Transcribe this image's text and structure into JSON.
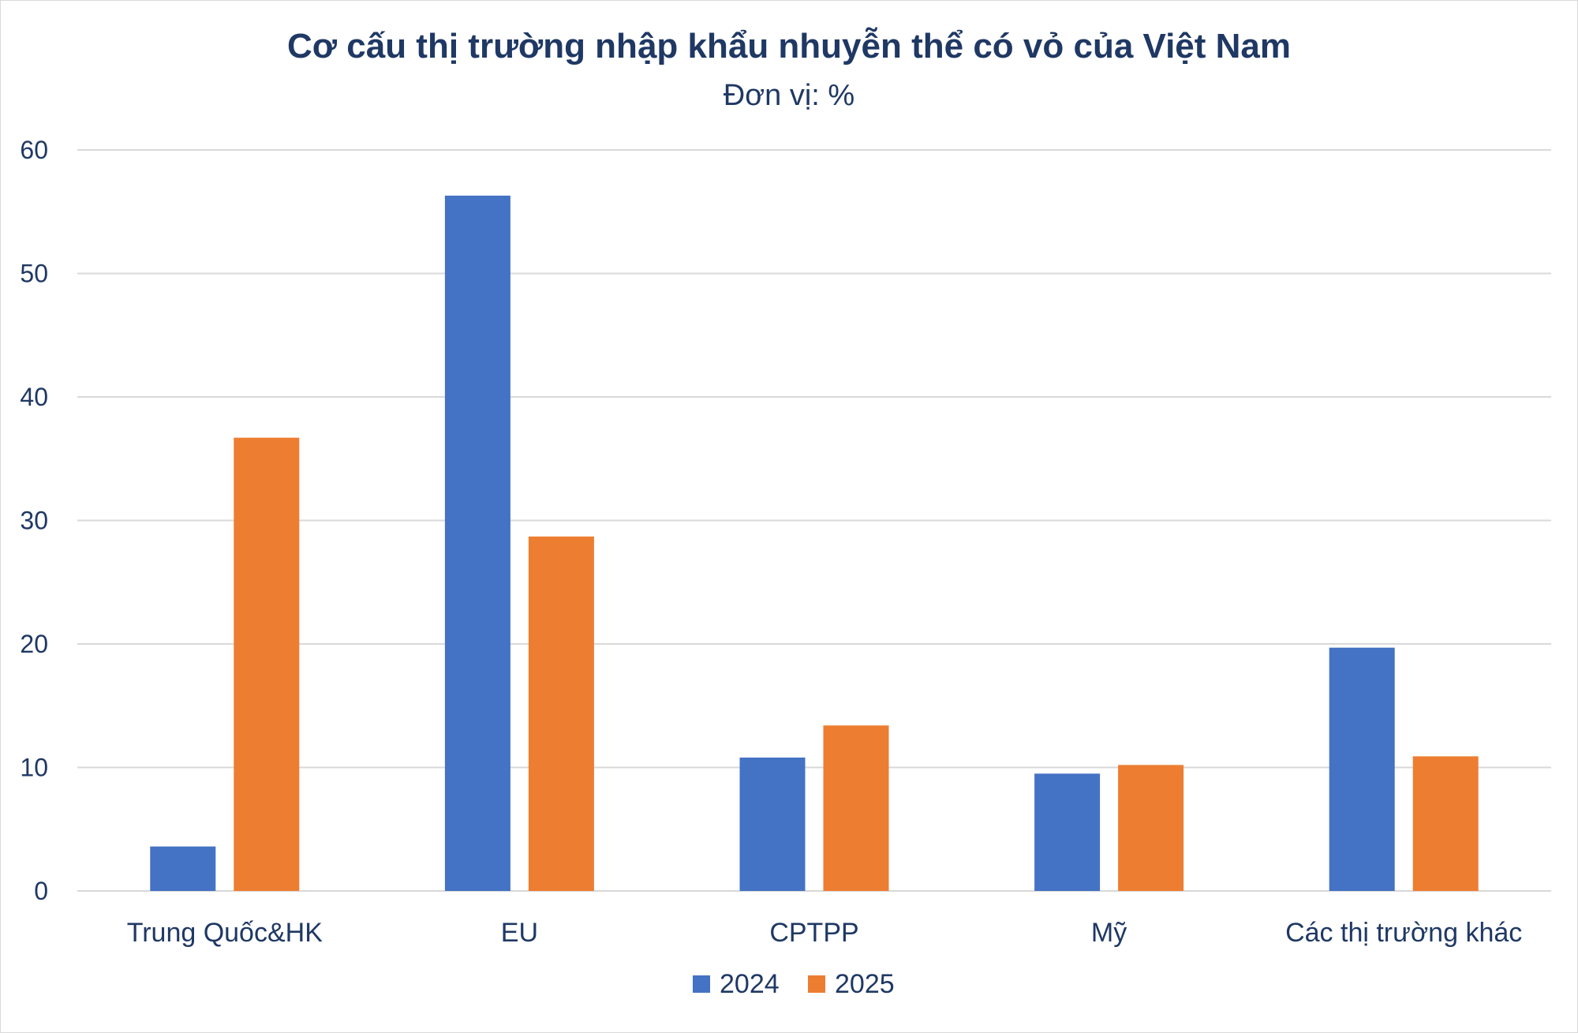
{
  "chart_data": {
    "type": "bar",
    "title": "Cơ cấu thị trường nhập khẩu nhuyễn thể có vỏ của Việt Nam",
    "subtitle": "Đơn vị: %",
    "categories": [
      "Trung Quốc&HK",
      "EU",
      "CPTPP",
      "Mỹ",
      "Các thị trường khác"
    ],
    "series": [
      {
        "name": "2024",
        "color": "#4472c4",
        "values": [
          3.6,
          56.3,
          10.8,
          9.5,
          19.7
        ]
      },
      {
        "name": "2025",
        "color": "#ed7d31",
        "values": [
          36.7,
          28.7,
          13.4,
          10.2,
          10.9
        ]
      }
    ],
    "ylim": [
      0,
      60
    ],
    "yticks": [
      "0",
      "10",
      "20",
      "30",
      "40",
      "50",
      "60"
    ],
    "grid": true,
    "legend_position": "bottom"
  }
}
